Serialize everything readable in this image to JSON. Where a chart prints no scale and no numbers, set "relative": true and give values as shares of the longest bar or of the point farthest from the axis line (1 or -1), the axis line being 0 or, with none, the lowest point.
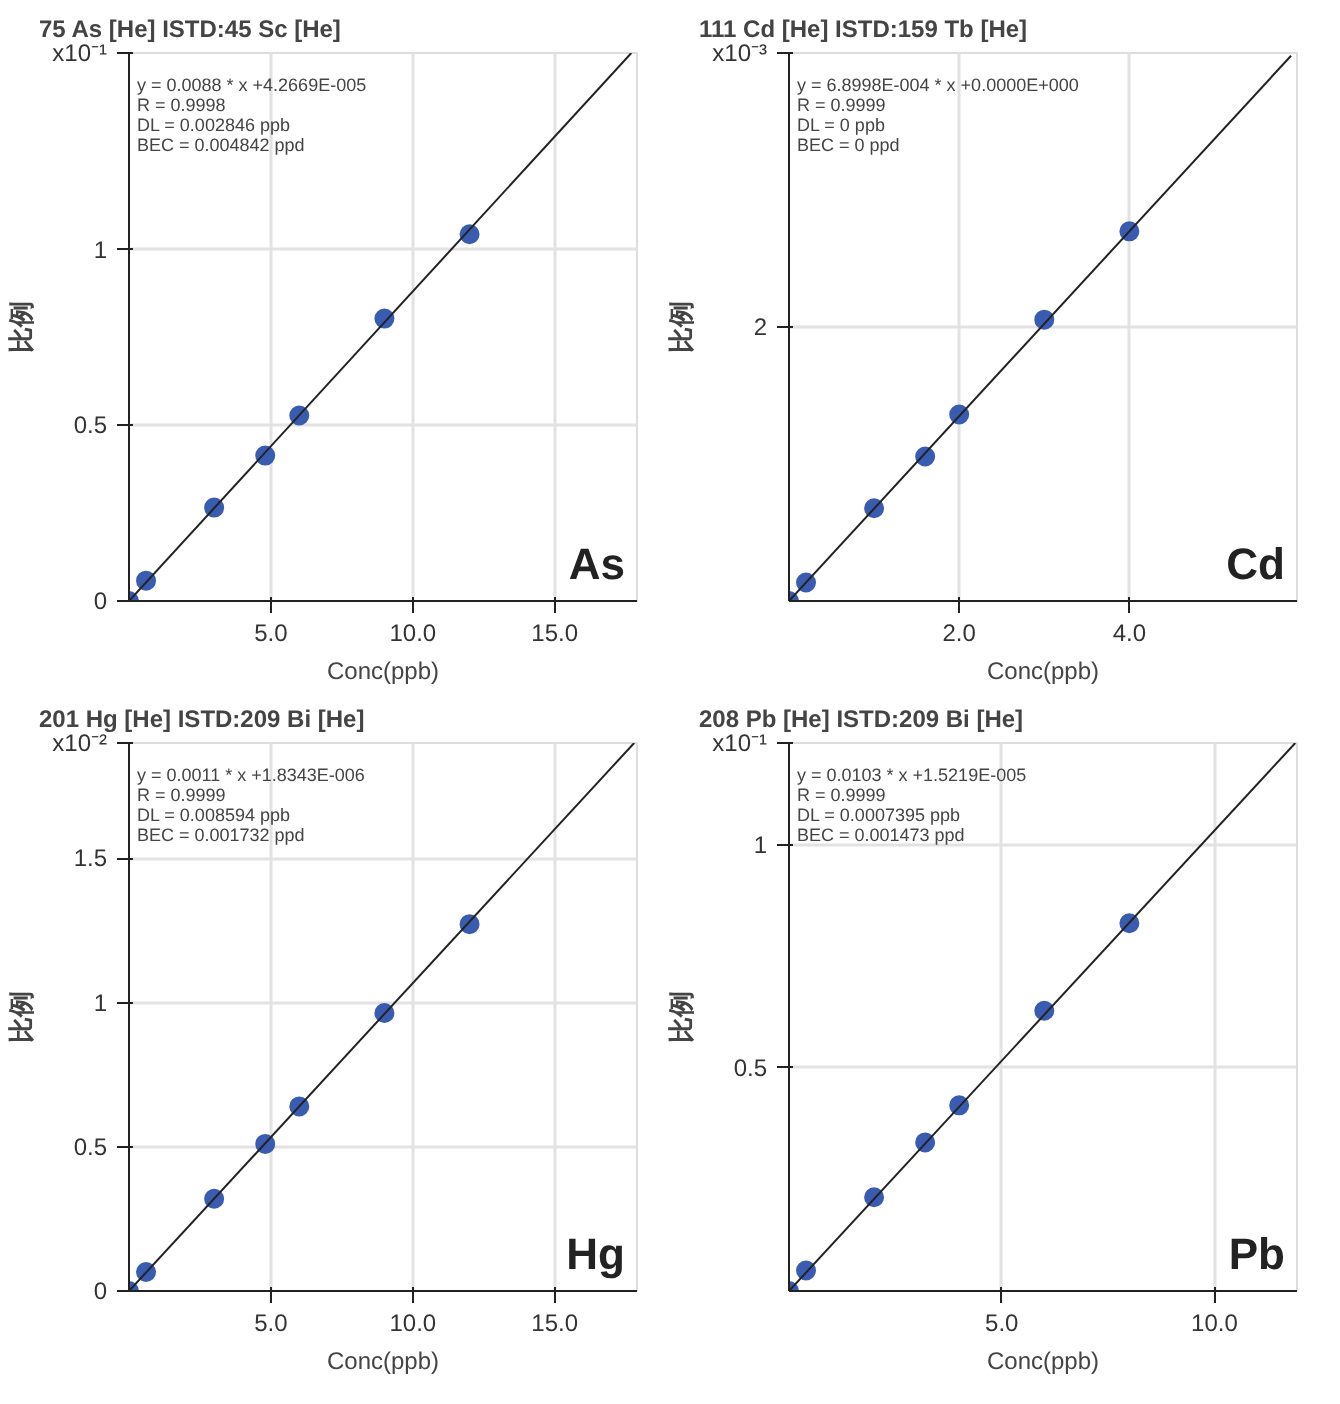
{
  "chart_data": [
    {
      "type": "scatter",
      "title": "75 As [He] ISTD:45 Sc [He]",
      "xlabel": "Conc(ppb)",
      "ylabel": "比例",
      "xlim": [
        0,
        17.9
      ],
      "ylim": [
        0,
        1.56
      ],
      "xticks": [
        {
          "value": 5,
          "label": "5.0"
        },
        {
          "value": 10,
          "label": "10.0"
        },
        {
          "value": 15,
          "label": "15.0"
        }
      ],
      "yticks": [
        0,
        0.5,
        1,
        {
          "value": 1.56,
          "label": "x10⁻¹"
        }
      ],
      "grid": true,
      "annotations": [
        "y = 0.0088 * x +4.2669E-005",
        "R = 0.9998",
        "DL = 0.002846 ppb",
        "BEC = 0.004842 ppd",
        "As"
      ],
      "series": [
        {
          "color": "#3a5cb0",
          "marker": "circle",
          "x": [
            0,
            0.6,
            3,
            4.8,
            6,
            9,
            12
          ],
          "values": [
            0,
            0.058,
            0.266,
            0.414,
            0.528,
            0.804,
            1.044
          ]
        },
        {
          "type": "line",
          "color": "#222222",
          "x": [
            0,
            17.7
          ],
          "values": [
            0,
            1.56
          ]
        }
      ]
    },
    {
      "type": "scatter",
      "title": "111 Cd [He] ISTD:159 Tb [He]",
      "xlabel": "Conc(ppb)",
      "ylabel": "比例",
      "xlim": [
        0,
        5.97
      ],
      "relative": true,
      "xticks": [
        {
          "value": 2,
          "label": "2.0"
        },
        {
          "value": 4,
          "label": "4.0"
        }
      ],
      "grid": true,
      "annotations": [
        "x10⁻³",
        "2",
        "y = 6.8998E-004 * x +0.0000E+000",
        "R = 0.9999",
        "DL = 0 ppb",
        "BEC = 0 ppd",
        "Cd"
      ],
      "series": [
        {
          "color": "#3a5cb0",
          "marker": "circle",
          "x": [
            0,
            0.2,
            1,
            1.6,
            2,
            3,
            4
          ],
          "values": [
            0,
            0.034,
            0.17,
            0.265,
            0.342,
            0.516,
            0.678
          ]
        },
        {
          "type": "line",
          "color": "#222222",
          "x": [
            0,
            5.9
          ],
          "values": [
            0,
            1
          ]
        }
      ]
    },
    {
      "type": "scatter",
      "title": "201 Hg [He] ISTD:209 Bi [He]",
      "xlabel": "Conc(ppb)",
      "ylabel": "比例",
      "xlim": [
        0,
        17.9
      ],
      "ylim": [
        0,
        1.9
      ],
      "xticks": [
        {
          "value": 5,
          "label": "5.0"
        },
        {
          "value": 10,
          "label": "10.0"
        },
        {
          "value": 15,
          "label": "15.0"
        }
      ],
      "yticks": [
        0,
        0.5,
        1,
        1.5,
        {
          "value": 1.9,
          "label": "x10⁻²"
        }
      ],
      "grid": true,
      "annotations": [
        "y = 0.0011 * x +1.8343E-006",
        "R = 0.9999",
        "DL = 0.008594 ppb",
        "BEC = 0.001732 ppd",
        "Hg"
      ],
      "series": [
        {
          "color": "#3a5cb0",
          "marker": "circle",
          "x": [
            0,
            0.6,
            3,
            4.8,
            6,
            9,
            12
          ],
          "values": [
            0,
            0.066,
            0.32,
            0.51,
            0.64,
            0.964,
            1.272
          ]
        },
        {
          "type": "line",
          "color": "#222222",
          "x": [
            0,
            17.8
          ],
          "values": [
            0,
            1.9
          ]
        }
      ]
    },
    {
      "type": "scatter",
      "title": "208 Pb [He] ISTD:209 Bi [He]",
      "xlabel": "Conc(ppb)",
      "ylabel": "比例",
      "xlim": [
        0,
        11.94
      ],
      "ylim": [
        0,
        1.228
      ],
      "xticks": [
        {
          "value": 5,
          "label": "5.0"
        },
        {
          "value": 10,
          "label": "10.0"
        }
      ],
      "yticks": [
        0.5,
        1,
        {
          "value": 1.228,
          "label": "x10⁻¹"
        }
      ],
      "grid": true,
      "annotations": [
        "y = 0.0103 * x +1.5219E-005",
        "R = 0.9999",
        "DL = 0.0007395 ppb",
        "BEC = 0.001473 ppd",
        "Pb"
      ],
      "series": [
        {
          "color": "#3a5cb0",
          "marker": "circle",
          "x": [
            0,
            0.4,
            2,
            3.2,
            4,
            6,
            8
          ],
          "values": [
            0,
            0.046,
            0.21,
            0.333,
            0.416,
            0.628,
            0.824
          ]
        },
        {
          "type": "line",
          "color": "#222222",
          "x": [
            0,
            11.9
          ],
          "values": [
            0,
            1.228
          ]
        }
      ]
    }
  ]
}
